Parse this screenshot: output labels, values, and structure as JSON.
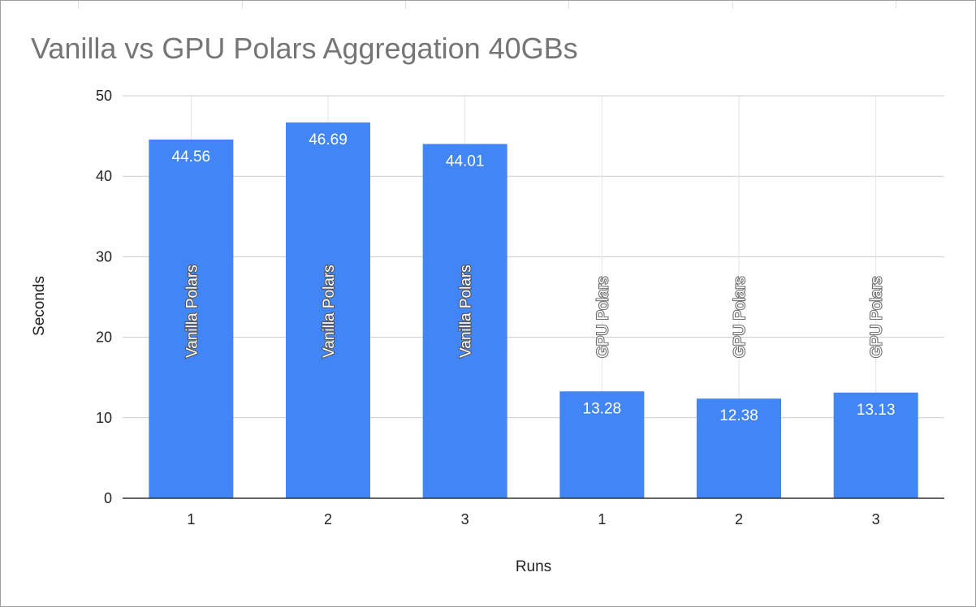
{
  "chart_data": {
    "type": "bar",
    "title": "Vanilla vs GPU Polars Aggregation 40GBs",
    "xlabel": "Runs",
    "ylabel": "Seconds",
    "ylim": [
      0,
      50
    ],
    "yticks": [
      0,
      10,
      20,
      30,
      40,
      50
    ],
    "grid": true,
    "legend": "none",
    "bar_color": "#4285f4",
    "categories": [
      "1",
      "2",
      "3",
      "1",
      "2",
      "3"
    ],
    "values": [
      44.56,
      46.69,
      44.01,
      13.28,
      12.38,
      13.13
    ],
    "value_labels": [
      "44.56",
      "46.69",
      "44.01",
      "13.28",
      "12.38",
      "13.13"
    ],
    "bar_labels": [
      "Vanilla Polars",
      "Vanilla Polars",
      "Vanilla Polars",
      "GPU Polars",
      "GPU Polars",
      "GPU Polars"
    ]
  }
}
